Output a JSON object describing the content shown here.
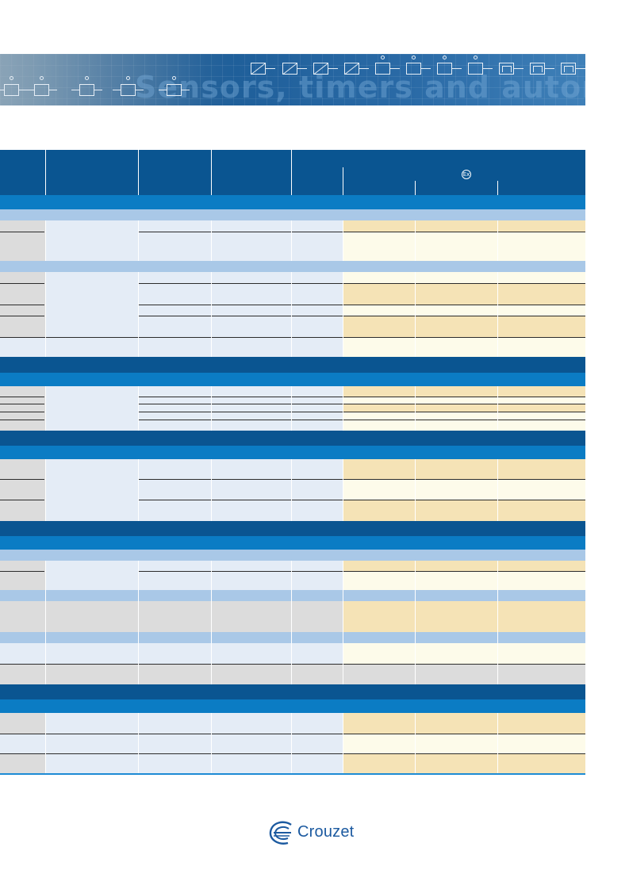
{
  "banner": {
    "title": "Sensors, timers and automation controls"
  },
  "table": {
    "header": {
      "ex_mark": "Ex"
    }
  },
  "brand": {
    "name": "Crouzet",
    "color": "#1c5aa0"
  },
  "colors": {
    "header_dark": "#0a5591",
    "section_mid": "#0b7cc4",
    "subsection_light": "#a9c8e7",
    "row_gray": "#dcdcdc",
    "row_pale_blue": "#e4ecf6",
    "row_cream": "#fdfbea",
    "row_tan": "#f5e3b6",
    "accent_line": "#1d8bd4"
  }
}
